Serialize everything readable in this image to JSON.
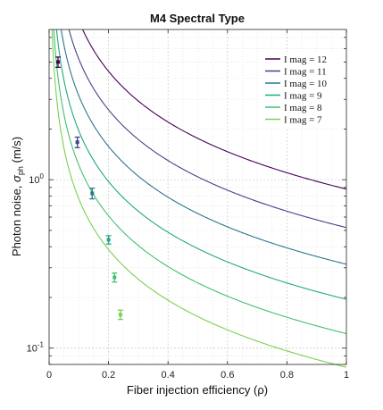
{
  "chart_data": {
    "type": "line",
    "title": "M4 Spectral Type",
    "xlabel": "Fiber injection efficiency (ρ)",
    "ylabel": "Photon noise, σph (m/s)",
    "ylabel_parts": {
      "main": "Photon noise, ",
      "sym": "σ",
      "sub": "ph",
      "unit": " (m/s)"
    },
    "xscale": "linear",
    "yscale": "log",
    "xlim": [
      0,
      1
    ],
    "ylim": [
      0.08,
      7.8
    ],
    "x_ticks": [
      0,
      0.2,
      0.4,
      0.6,
      0.8,
      1
    ],
    "x_tick_labels": [
      "0",
      "0.2",
      "0.4",
      "0.6",
      "0.8",
      "1"
    ],
    "y_ticks": [
      0.1,
      1
    ],
    "y_tick_labels": [
      {
        "base": "10",
        "exp": "-1"
      },
      {
        "base": "10",
        "exp": "0"
      }
    ],
    "grid": true,
    "minor_grid": true,
    "legend_position": "top-right",
    "series": [
      {
        "name": "I mag = 12",
        "color": "#440154",
        "k": 0.88,
        "marker": {
          "x": 0.03,
          "y": 5.0,
          "err": 0.35
        }
      },
      {
        "name": "I mag = 11",
        "color": "#414487",
        "k": 0.52,
        "marker": {
          "x": 0.095,
          "y": 1.67,
          "err": 0.12
        }
      },
      {
        "name": "I mag = 10",
        "color": "#2a788e",
        "k": 0.315,
        "marker": {
          "x": 0.145,
          "y": 0.83,
          "err": 0.06
        }
      },
      {
        "name": "I mag = 9",
        "color": "#22a884",
        "k": 0.195,
        "marker": {
          "x": 0.2,
          "y": 0.44,
          "err": 0.025
        }
      },
      {
        "name": "I mag = 8",
        "color": "#44bf70",
        "k": 0.122,
        "marker": {
          "x": 0.22,
          "y": 0.263,
          "err": 0.016
        }
      },
      {
        "name": "I mag = 7",
        "color": "#7ad151",
        "k": 0.077,
        "marker": {
          "x": 0.24,
          "y": 0.158,
          "err": 0.01
        }
      }
    ]
  }
}
